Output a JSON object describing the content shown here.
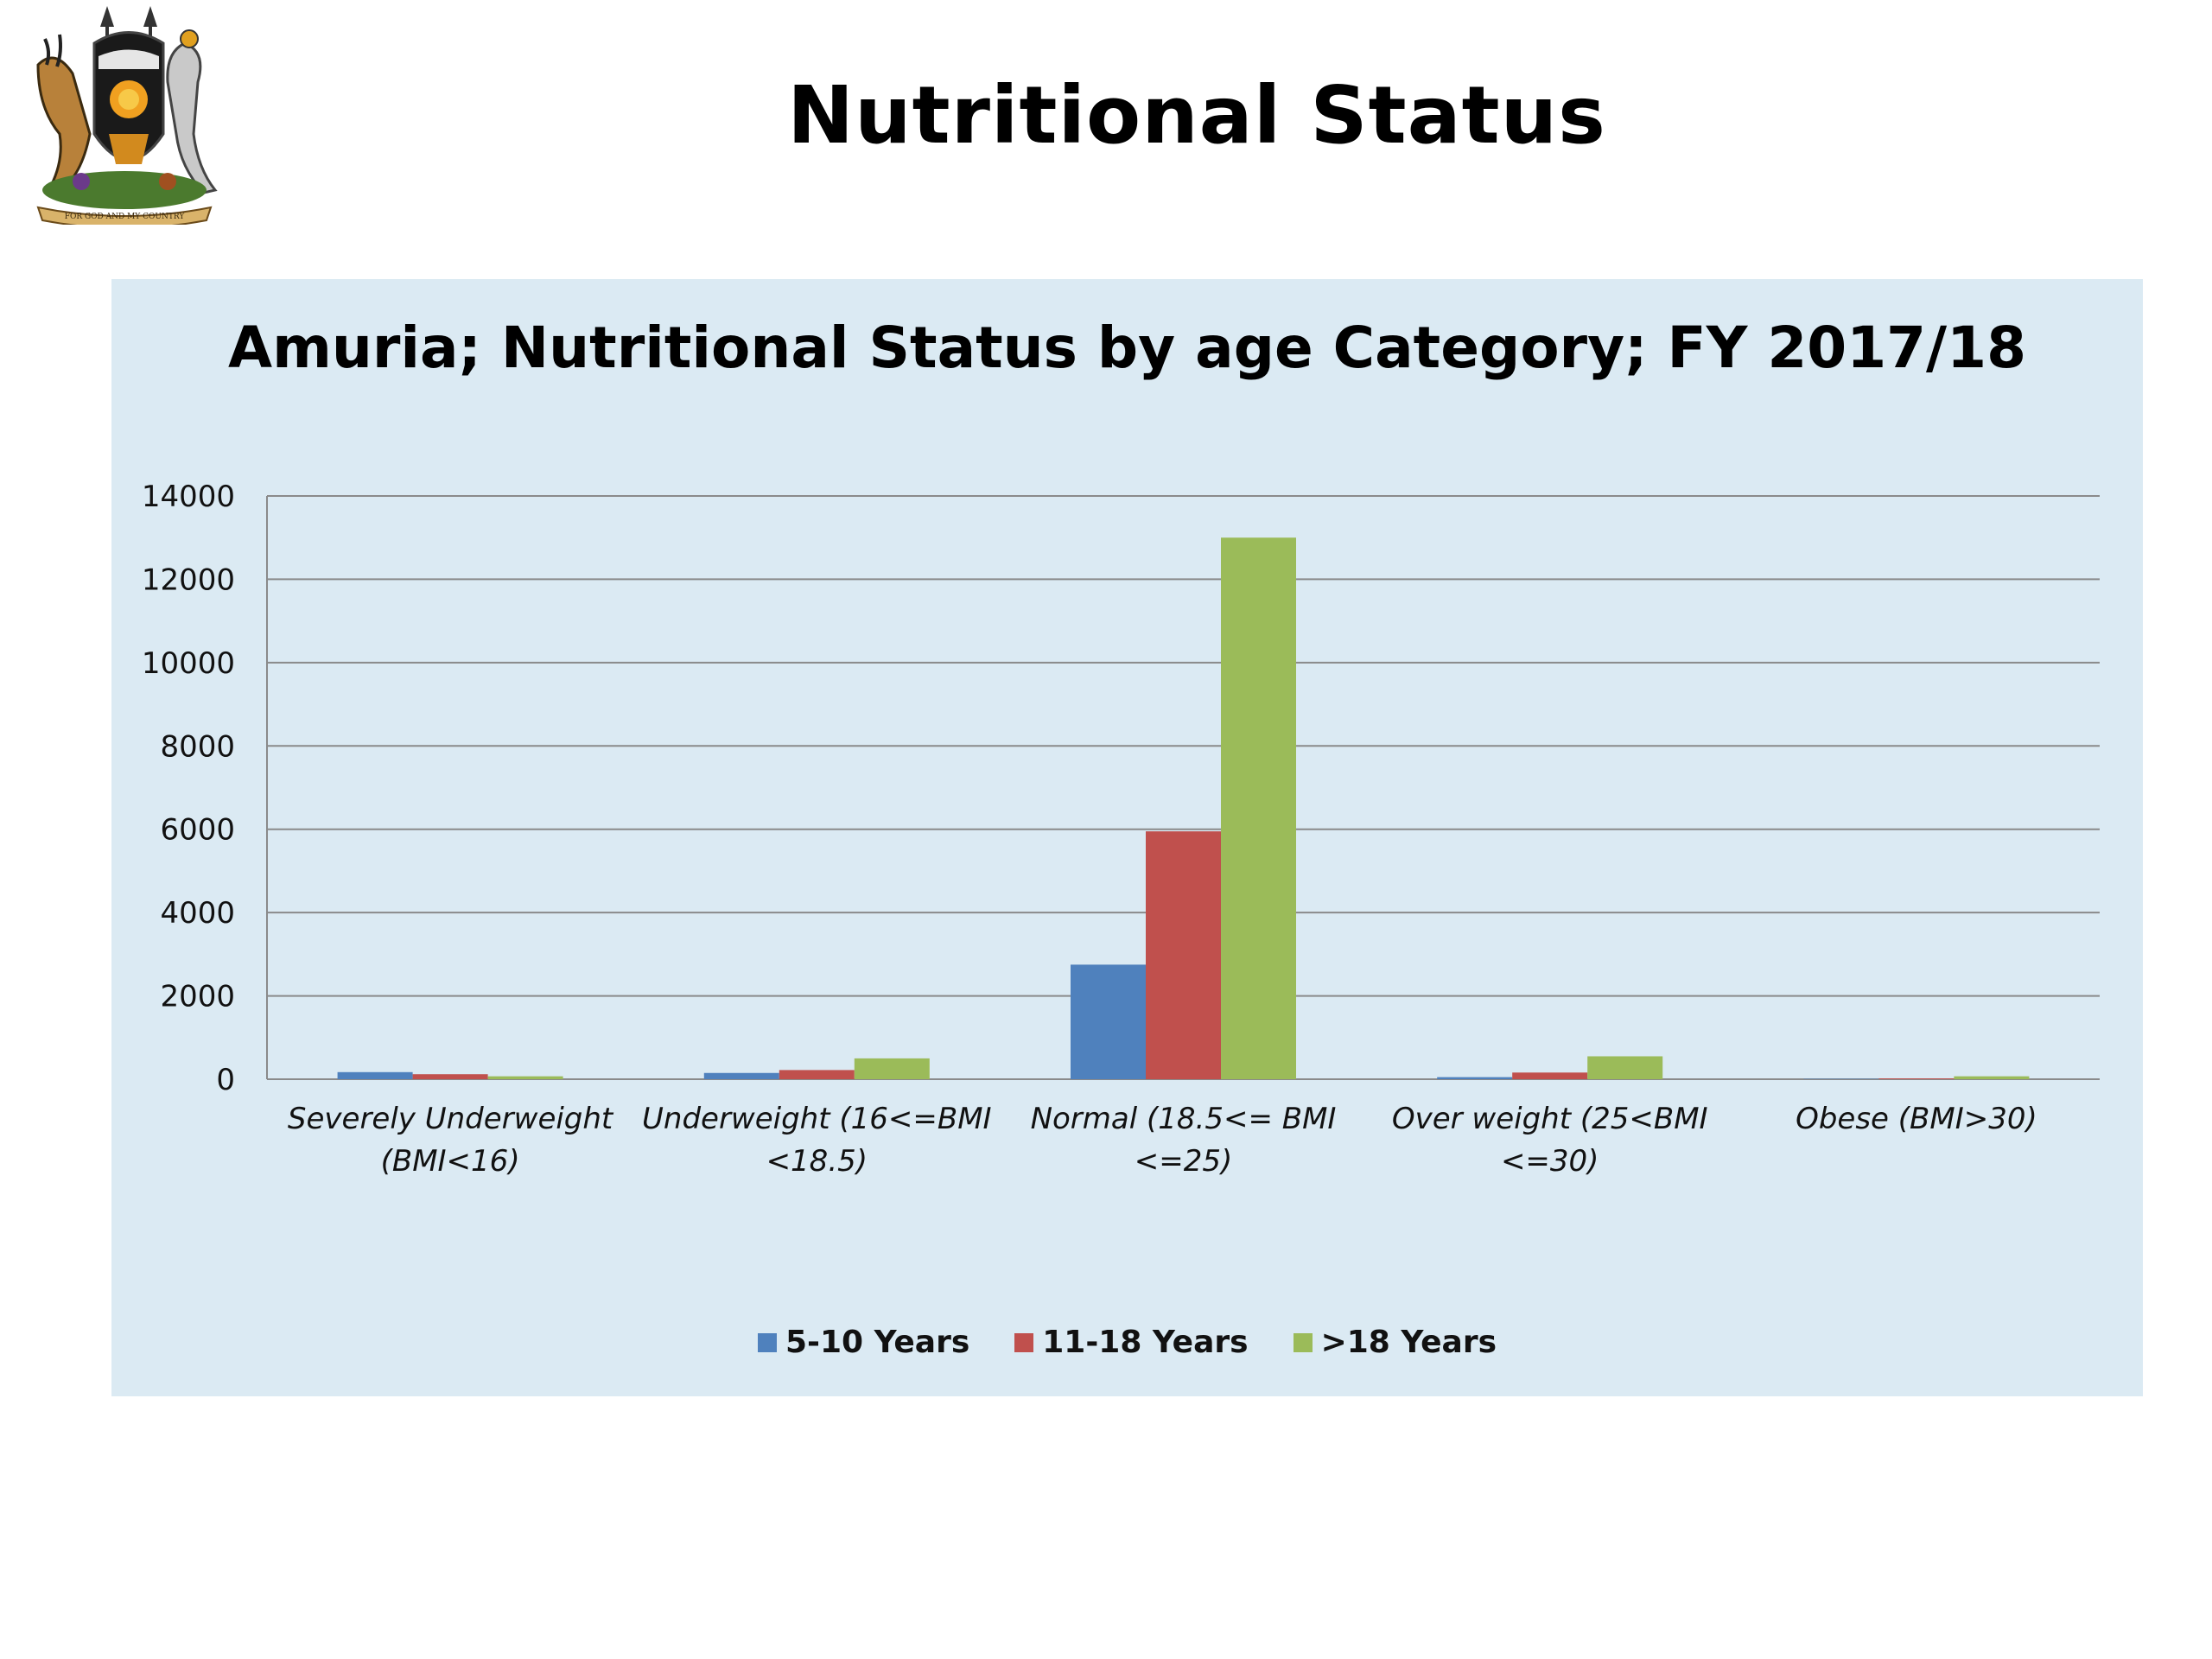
{
  "slide": {
    "title": "Nutritional Status"
  },
  "logo": {
    "icon": "uganda-coat-of-arms-icon",
    "motto": "FOR GOD AND MY COUNTRY"
  },
  "chart_data": {
    "type": "bar",
    "title": "Amuria; Nutritional Status by age Category; FY 2017/18",
    "categories": [
      [
        "Severely Underweight",
        "(BMI<16)"
      ],
      [
        "Underweight (16<=BMI",
        "<18.5)"
      ],
      [
        "Normal (18.5<= BMI",
        "<=25)"
      ],
      [
        "Over weight (25<BMI",
        "<=30)"
      ],
      [
        "Obese (BMI>30)"
      ]
    ],
    "series": [
      {
        "name": "5-10 Years",
        "color": "#4f81bd",
        "values": [
          170,
          150,
          2750,
          50,
          10
        ]
      },
      {
        "name": "11-18 Years",
        "color": "#c0504d",
        "values": [
          120,
          220,
          5950,
          160,
          20
        ]
      },
      {
        "name": ">18 Years",
        "color": "#9bbb59",
        "values": [
          70,
          500,
          13000,
          550,
          70
        ]
      }
    ],
    "yticks": [
      "0",
      "2000",
      "4000",
      "6000",
      "8000",
      "10000",
      "12000",
      "14000"
    ],
    "ylim": [
      0,
      14000
    ],
    "grid": true,
    "legend_position": "bottom"
  }
}
